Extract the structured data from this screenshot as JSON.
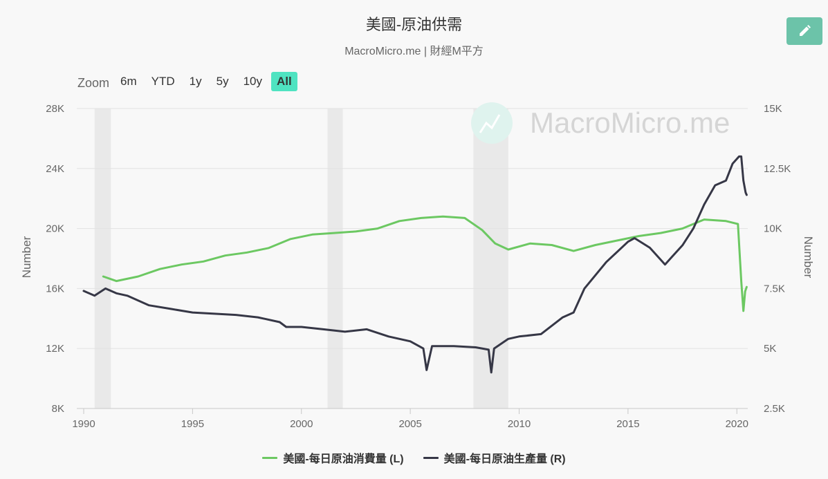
{
  "header": {
    "title": "美國-原油供需",
    "subtitle": "MacroMicro.me | 財經M平方"
  },
  "toolbar": {
    "edit_icon": "pencil-icon"
  },
  "zoom": {
    "label": "Zoom",
    "buttons": [
      "6m",
      "YTD",
      "1y",
      "5y",
      "10y",
      "All"
    ],
    "active": "All"
  },
  "watermark": {
    "text": "MacroMicro.me",
    "icon": "macromicro-logo-icon"
  },
  "colors": {
    "consumption": "#6cc862",
    "production": "#363746",
    "recession": "#e9e9e9",
    "grid": "#e2e2e2"
  },
  "chart_data": {
    "type": "line",
    "xlim": [
      1990,
      2020.5
    ],
    "x_ticks": [
      "1990",
      "1995",
      "2000",
      "2005",
      "2010",
      "2015",
      "2020"
    ],
    "left_axis": {
      "label": "Number",
      "ylim": [
        8000,
        28000
      ],
      "ticks": [
        "8K",
        "12K",
        "16K",
        "20K",
        "24K",
        "28K"
      ]
    },
    "right_axis": {
      "label": "Number",
      "ylim": [
        2500,
        15000
      ],
      "ticks": [
        "2.5K",
        "5K",
        "7.5K",
        "10K",
        "12.5K",
        "15K"
      ]
    },
    "recession_bands": [
      [
        1990.5,
        1991.25
      ],
      [
        2001.2,
        2001.9
      ],
      [
        2007.9,
        2009.5
      ]
    ],
    "series": [
      {
        "name": "美國-每日原油消費量 (L)",
        "axis": "left",
        "x": [
          1990.9,
          1991.5,
          1992.5,
          1993.5,
          1994.5,
          1995.5,
          1996.5,
          1997.5,
          1998.5,
          1999.5,
          2000.5,
          2001.5,
          2002.5,
          2003.5,
          2004.5,
          2005.5,
          2006.5,
          2007.5,
          2008.3,
          2008.9,
          2009.5,
          2010.5,
          2011.5,
          2012.5,
          2013.5,
          2014.5,
          2015.5,
          2016.5,
          2017.5,
          2018.5,
          2019.5,
          2020.05,
          2020.2,
          2020.3,
          2020.38,
          2020.45
        ],
        "y": [
          16800,
          16500,
          16800,
          17300,
          17600,
          17800,
          18200,
          18400,
          18700,
          19300,
          19600,
          19700,
          19800,
          20000,
          20500,
          20700,
          20800,
          20700,
          19900,
          19000,
          18600,
          19000,
          18900,
          18500,
          18900,
          19200,
          19500,
          19700,
          20000,
          20600,
          20500,
          20300,
          16500,
          14500,
          15800,
          16100
        ]
      },
      {
        "name": "美國-每日原油生產量 (R)",
        "axis": "right",
        "x": [
          1990.0,
          1990.5,
          1991.0,
          1991.5,
          1992.0,
          1993.0,
          1994.0,
          1995.0,
          1996.0,
          1997.0,
          1998.0,
          1999.0,
          1999.3,
          2000.0,
          2001.0,
          2002.0,
          2003.0,
          2004.0,
          2005.0,
          2005.6,
          2005.75,
          2006.0,
          2007.0,
          2008.0,
          2008.6,
          2008.72,
          2008.85,
          2009.5,
          2010.0,
          2011.0,
          2012.0,
          2012.5,
          2013.0,
          2014.0,
          2015.0,
          2015.3,
          2016.0,
          2016.7,
          2017.0,
          2017.5,
          2018.0,
          2018.5,
          2019.0,
          2019.5,
          2019.8,
          2020.1,
          2020.2,
          2020.3,
          2020.4,
          2020.45
        ],
        "y": [
          7400,
          7200,
          7500,
          7300,
          7200,
          6800,
          6650,
          6500,
          6450,
          6400,
          6300,
          6100,
          5900,
          5900,
          5800,
          5700,
          5800,
          5500,
          5300,
          5000,
          4100,
          5100,
          5100,
          5050,
          4950,
          4000,
          5000,
          5400,
          5500,
          5600,
          6300,
          6500,
          7500,
          8600,
          9450,
          9600,
          9200,
          8500,
          8800,
          9300,
          10000,
          11000,
          11800,
          12000,
          12700,
          13000,
          13000,
          12000,
          11500,
          11400
        ]
      }
    ]
  }
}
